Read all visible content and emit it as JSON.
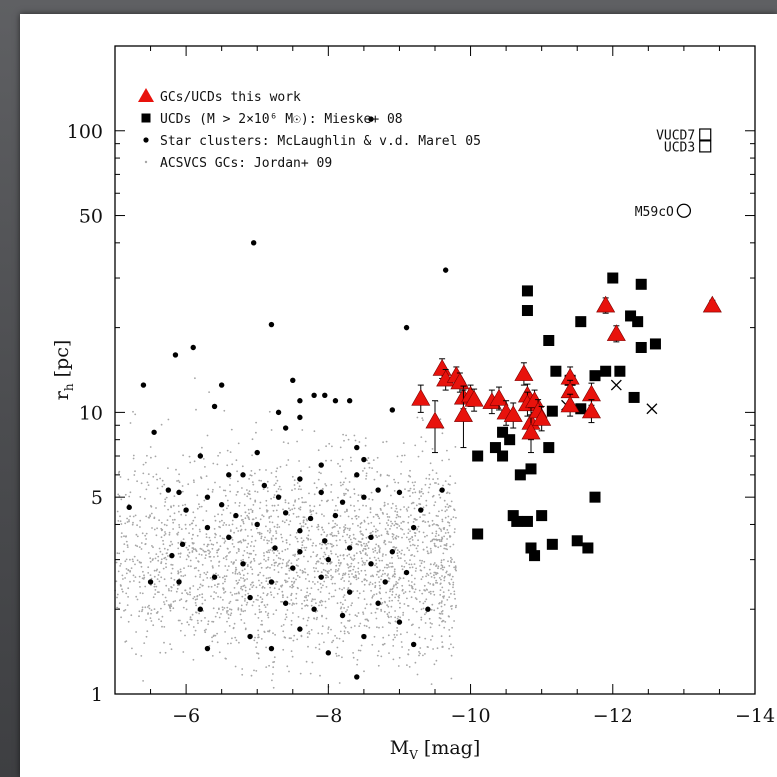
{
  "chart_data": {
    "type": "scatter",
    "xlabel": "M",
    "xlabel_sub": "V",
    "xlabel_unit": "[mag]",
    "ylabel": "r",
    "ylabel_sub": "h",
    "ylabel_unit": "[pc]",
    "x_range": [
      -5,
      -14
    ],
    "y_range": [
      1,
      200
    ],
    "y_scale": "log",
    "x_ticks": [
      -6,
      -8,
      -10,
      -12,
      -14
    ],
    "x_tick_labels": [
      "−6",
      "−8",
      "−10",
      "−12",
      "−14"
    ],
    "y_ticks": [
      1,
      5,
      10,
      50,
      100
    ],
    "y_tick_labels": [
      "1",
      "5",
      "10",
      "50",
      "100"
    ],
    "legend_position": "top-left",
    "legend": [
      {
        "marker": "red-triangle",
        "text": "GCs/UCDs this work"
      },
      {
        "marker": "black-square",
        "text": "UCDs (M > 2×10⁶ M☉): Mieske+ 08"
      },
      {
        "marker": "black-dot",
        "text": "Star clusters: McLaughlin & v.d. Marel 05"
      },
      {
        "marker": "gray-dot",
        "text": "ACSVCS GCs: Jordan+ 09"
      }
    ],
    "colors": {
      "this_work": "#e8120c",
      "ucds": "#000000",
      "star_clusters": "#000000",
      "acsvcs": "#a6a6a6"
    },
    "annotations": [
      {
        "text": "VUCD7",
        "x": -13.3,
        "y": 97,
        "marker": "open-square"
      },
      {
        "text": "UCD3",
        "x": -13.3,
        "y": 88,
        "marker": "open-square"
      },
      {
        "text": "M59cO",
        "x": -13.0,
        "y": 52,
        "marker": "open-circle"
      }
    ],
    "series": [
      {
        "name": "GCs/UCDs this work",
        "points": [
          {
            "x": -9.3,
            "y": 11.2,
            "err": [
              10.0,
              12.5
            ]
          },
          {
            "x": -9.5,
            "y": 9.3,
            "err": [
              7.2,
              11.0
            ]
          },
          {
            "x": -9.6,
            "y": 14.3,
            "err": [
              13.2,
              15.5
            ]
          },
          {
            "x": -9.65,
            "y": 13.1,
            "err": [
              12.0,
              14.2
            ]
          },
          {
            "x": -9.8,
            "y": 13.5,
            "err": [
              12.5,
              14.5
            ]
          },
          {
            "x": -9.85,
            "y": 12.8,
            "err": [
              11.8,
              13.8
            ]
          },
          {
            "x": -9.9,
            "y": 11.3,
            "err": [
              10.3,
              12.4
            ]
          },
          {
            "x": -9.9,
            "y": 9.8,
            "err": [
              7.5,
              12.0
            ]
          },
          {
            "x": -10.0,
            "y": 11.5,
            "err": [
              10.5,
              12.5
            ]
          },
          {
            "x": -10.05,
            "y": 11.1,
            "err": [
              10.1,
              12.1
            ]
          },
          {
            "x": -10.3,
            "y": 10.9,
            "err": [
              9.9,
              12.0
            ]
          },
          {
            "x": -10.4,
            "y": 11.2,
            "err": [
              10.2,
              12.3
            ]
          },
          {
            "x": -10.5,
            "y": 10.0,
            "err": [
              9.0,
              11.0
            ]
          },
          {
            "x": -10.6,
            "y": 9.8,
            "err": [
              8.8,
              10.8
            ]
          },
          {
            "x": -10.75,
            "y": 13.7,
            "err": [
              12.5,
              15.0
            ]
          },
          {
            "x": -10.8,
            "y": 11.5,
            "err": [
              10.5,
              12.6
            ]
          },
          {
            "x": -10.8,
            "y": 10.7,
            "err": [
              9.7,
              11.8
            ]
          },
          {
            "x": -10.85,
            "y": 9.2,
            "err": [
              8.0,
              10.4
            ]
          },
          {
            "x": -10.85,
            "y": 8.5,
            "err": [
              7.2,
              9.8
            ]
          },
          {
            "x": -10.9,
            "y": 11.0,
            "err": [
              10.0,
              12.0
            ]
          },
          {
            "x": -10.95,
            "y": 10.1,
            "err": [
              9.1,
              11.1
            ]
          },
          {
            "x": -11.0,
            "y": 9.5,
            "err": [
              8.6,
              10.5
            ]
          },
          {
            "x": -11.4,
            "y": 13.3,
            "err": [
              12.2,
              14.5
            ]
          },
          {
            "x": -11.4,
            "y": 11.9,
            "err": [
              10.9,
              13.0
            ]
          },
          {
            "x": -11.4,
            "y": 10.6,
            "err": [
              9.7,
              11.6
            ]
          },
          {
            "x": -11.7,
            "y": 11.6,
            "err": [
              10.6,
              12.7
            ]
          },
          {
            "x": -11.7,
            "y": 10.1,
            "err": [
              9.2,
              11.1
            ]
          },
          {
            "x": -11.9,
            "y": 24.0,
            "err": [
              22.5,
              25.5
            ]
          },
          {
            "x": -12.05,
            "y": 19.0,
            "err": [
              17.8,
              20.3
            ]
          },
          {
            "x": -13.4,
            "y": 24.0,
            "err": [
              23.0,
              25.0
            ]
          }
        ]
      },
      {
        "name": "UCDs (M > 2×10⁶ M☉): Mieske+ 08",
        "points": [
          {
            "x": -10.35,
            "y": 7.5
          },
          {
            "x": -10.45,
            "y": 8.5
          },
          {
            "x": -10.55,
            "y": 8.0
          },
          {
            "x": -10.1,
            "y": 7.0
          },
          {
            "x": -10.45,
            "y": 7.0
          },
          {
            "x": -10.7,
            "y": 6.0
          },
          {
            "x": -10.85,
            "y": 6.3
          },
          {
            "x": -10.6,
            "y": 4.3
          },
          {
            "x": -10.65,
            "y": 4.1
          },
          {
            "x": -10.8,
            "y": 4.1
          },
          {
            "x": -11.0,
            "y": 4.3
          },
          {
            "x": -10.1,
            "y": 3.7
          },
          {
            "x": -10.85,
            "y": 3.3
          },
          {
            "x": -10.9,
            "y": 3.1
          },
          {
            "x": -11.15,
            "y": 3.4
          },
          {
            "x": -11.5,
            "y": 3.5
          },
          {
            "x": -11.65,
            "y": 3.3
          },
          {
            "x": -11.75,
            "y": 5.0
          },
          {
            "x": -11.1,
            "y": 7.5
          },
          {
            "x": -10.8,
            "y": 27.0
          },
          {
            "x": -10.8,
            "y": 23.0
          },
          {
            "x": -11.1,
            "y": 18.0
          },
          {
            "x": -11.2,
            "y": 14.0
          },
          {
            "x": -11.4,
            "y": 13.0
          },
          {
            "x": -11.55,
            "y": 21.0
          },
          {
            "x": -11.75,
            "y": 13.5
          },
          {
            "x": -11.9,
            "y": 14.0
          },
          {
            "x": -12.0,
            "y": 30.0
          },
          {
            "x": -12.1,
            "y": 14.0
          },
          {
            "x": -12.25,
            "y": 22.0
          },
          {
            "x": -12.35,
            "y": 21.0
          },
          {
            "x": -12.4,
            "y": 17.0
          },
          {
            "x": -12.4,
            "y": 28.5
          },
          {
            "x": -12.6,
            "y": 17.5
          },
          {
            "x": -12.3,
            "y": 11.3
          },
          {
            "x": -11.55,
            "y": 10.3
          },
          {
            "x": -11.15,
            "y": 10.1
          }
        ]
      },
      {
        "name": "UCDs (crosses)",
        "points": [
          {
            "x": -11.35,
            "y": 10.6
          },
          {
            "x": -12.05,
            "y": 12.5
          },
          {
            "x": -12.55,
            "y": 10.3
          }
        ]
      },
      {
        "name": "Star clusters: McLaughlin & v.d. Marel 05",
        "points": [
          {
            "x": -5.4,
            "y": 12.5
          },
          {
            "x": -5.55,
            "y": 8.5
          },
          {
            "x": -5.85,
            "y": 16.0
          },
          {
            "x": -6.1,
            "y": 17.0
          },
          {
            "x": -6.4,
            "y": 10.5
          },
          {
            "x": -6.5,
            "y": 12.5
          },
          {
            "x": -6.95,
            "y": 40.0
          },
          {
            "x": -7.2,
            "y": 20.5
          },
          {
            "x": -7.5,
            "y": 13.0
          },
          {
            "x": -7.6,
            "y": 11.0
          },
          {
            "x": -7.8,
            "y": 11.5
          },
          {
            "x": -7.95,
            "y": 11.5
          },
          {
            "x": -8.1,
            "y": 11.0
          },
          {
            "x": -8.3,
            "y": 11.0
          },
          {
            "x": -8.6,
            "y": 110.0
          },
          {
            "x": -9.65,
            "y": 32.0
          },
          {
            "x": -9.1,
            "y": 20.0
          },
          {
            "x": -8.9,
            "y": 10.2
          },
          {
            "x": -7.3,
            "y": 10.0
          },
          {
            "x": -7.6,
            "y": 9.6
          },
          {
            "x": -7.4,
            "y": 8.8
          },
          {
            "x": -8.4,
            "y": 7.5
          },
          {
            "x": -8.5,
            "y": 6.8
          },
          {
            "x": -7.0,
            "y": 7.2
          },
          {
            "x": -6.8,
            "y": 6.0
          },
          {
            "x": -6.6,
            "y": 6.0
          },
          {
            "x": -5.75,
            "y": 5.3
          },
          {
            "x": -5.9,
            "y": 5.2
          },
          {
            "x": -6.3,
            "y": 5.0
          },
          {
            "x": -6.5,
            "y": 4.7
          },
          {
            "x": -7.1,
            "y": 5.5
          },
          {
            "x": -7.3,
            "y": 5.0
          },
          {
            "x": -7.6,
            "y": 5.8
          },
          {
            "x": -7.9,
            "y": 5.2
          },
          {
            "x": -8.2,
            "y": 4.8
          },
          {
            "x": -8.5,
            "y": 5.0
          },
          {
            "x": -8.7,
            "y": 5.3
          },
          {
            "x": -9.0,
            "y": 5.2
          },
          {
            "x": -9.6,
            "y": 5.3
          },
          {
            "x": -8.1,
            "y": 4.3
          },
          {
            "x": -7.75,
            "y": 4.2
          },
          {
            "x": -7.4,
            "y": 4.4
          },
          {
            "x": -7.0,
            "y": 4.0
          },
          {
            "x": -6.7,
            "y": 4.3
          },
          {
            "x": -6.3,
            "y": 3.9
          },
          {
            "x": -6.0,
            "y": 4.5
          },
          {
            "x": -5.2,
            "y": 4.6
          },
          {
            "x": -5.95,
            "y": 3.4
          },
          {
            "x": -6.6,
            "y": 3.6
          },
          {
            "x": -7.25,
            "y": 3.3
          },
          {
            "x": -7.6,
            "y": 3.2
          },
          {
            "x": -7.95,
            "y": 3.5
          },
          {
            "x": -8.3,
            "y": 3.3
          },
          {
            "x": -8.6,
            "y": 3.6
          },
          {
            "x": -8.9,
            "y": 3.2
          },
          {
            "x": -9.2,
            "y": 3.9
          },
          {
            "x": -9.1,
            "y": 2.7
          },
          {
            "x": -8.8,
            "y": 2.5
          },
          {
            "x": -8.3,
            "y": 2.3
          },
          {
            "x": -7.9,
            "y": 2.6
          },
          {
            "x": -7.5,
            "y": 2.8
          },
          {
            "x": -7.2,
            "y": 2.5
          },
          {
            "x": -6.8,
            "y": 2.9
          },
          {
            "x": -6.4,
            "y": 2.6
          },
          {
            "x": -5.9,
            "y": 2.5
          },
          {
            "x": -5.5,
            "y": 2.5
          },
          {
            "x": -6.2,
            "y": 2.0
          },
          {
            "x": -6.9,
            "y": 2.2
          },
          {
            "x": -7.4,
            "y": 2.1
          },
          {
            "x": -7.8,
            "y": 2.0
          },
          {
            "x": -8.2,
            "y": 1.9
          },
          {
            "x": -8.7,
            "y": 2.1
          },
          {
            "x": -9.0,
            "y": 1.8
          },
          {
            "x": -9.4,
            "y": 2.0
          },
          {
            "x": -8.5,
            "y": 1.6
          },
          {
            "x": -7.6,
            "y": 1.7
          },
          {
            "x": -6.9,
            "y": 1.6
          },
          {
            "x": -6.3,
            "y": 1.45
          },
          {
            "x": -7.2,
            "y": 1.45
          },
          {
            "x": -8.0,
            "y": 1.4
          },
          {
            "x": -8.4,
            "y": 1.15
          },
          {
            "x": -9.2,
            "y": 1.5
          },
          {
            "x": -5.8,
            "y": 3.1
          },
          {
            "x": -9.3,
            "y": 4.5
          },
          {
            "x": -8.4,
            "y": 6.0
          },
          {
            "x": -7.9,
            "y": 6.5
          },
          {
            "x": -6.2,
            "y": 7.0
          },
          {
            "x": -7.6,
            "y": 3.8
          },
          {
            "x": -8.0,
            "y": 3.0
          },
          {
            "x": -8.6,
            "y": 2.9
          }
        ]
      },
      {
        "name": "ACSVCS GCs: Jordan+ 09",
        "cloud": {
          "x_range": [
            -5.0,
            -9.8
          ],
          "y_center": 3.0,
          "y_spread_dex": 0.28,
          "count": 2600
        }
      }
    ]
  }
}
